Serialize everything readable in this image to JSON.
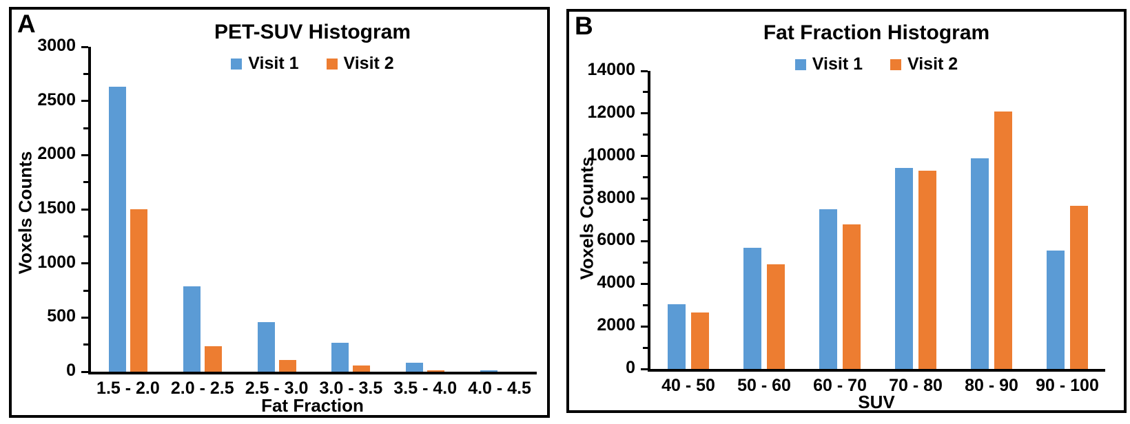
{
  "panels": [
    {
      "letter": "A"
    },
    {
      "letter": "B"
    }
  ],
  "colors": {
    "visit1_blue": "#5B9BD5",
    "visit2_orange": "#ED7D31",
    "axis_black": "#000000"
  },
  "chart_data": [
    {
      "type": "bar",
      "panel": "A",
      "title": "PET-SUV Histogram",
      "categories": [
        "1.5 - 2.0",
        "2.0 - 2.5",
        "2.5 - 3.0",
        "3.0 - 3.5",
        "3.5 - 4.0",
        "4.0 - 4.5"
      ],
      "series": [
        {
          "name": "Visit 1",
          "color": "#5B9BD5",
          "values": [
            2630,
            790,
            455,
            265,
            85,
            12
          ]
        },
        {
          "name": "Visit 2",
          "color": "#ED7D31",
          "values": [
            1500,
            235,
            110,
            55,
            15,
            0
          ]
        }
      ],
      "xlabel": "Fat Fraction",
      "ylabel": "Voxels Counts",
      "ylim": [
        0,
        3000
      ],
      "ytick_major": 500,
      "ytick_minor": 250,
      "grid": false,
      "legend_position": "top-center"
    },
    {
      "type": "bar",
      "panel": "B",
      "title": "Fat Fraction Histogram",
      "categories": [
        "40 - 50",
        "50 - 60",
        "60 - 70",
        "70 - 80",
        "80 - 90",
        "90 - 100"
      ],
      "series": [
        {
          "name": "Visit 1",
          "color": "#5B9BD5",
          "values": [
            3050,
            5700,
            7500,
            9450,
            9900,
            5550
          ]
        },
        {
          "name": "Visit 2",
          "color": "#ED7D31",
          "values": [
            2650,
            4900,
            6800,
            9300,
            12100,
            7650
          ]
        }
      ],
      "xlabel": "SUV",
      "ylabel": "Voxels Counts",
      "ylim": [
        0,
        14000
      ],
      "ytick_major": 2000,
      "ytick_minor": 1000,
      "grid": false,
      "legend_position": "top-center"
    }
  ]
}
